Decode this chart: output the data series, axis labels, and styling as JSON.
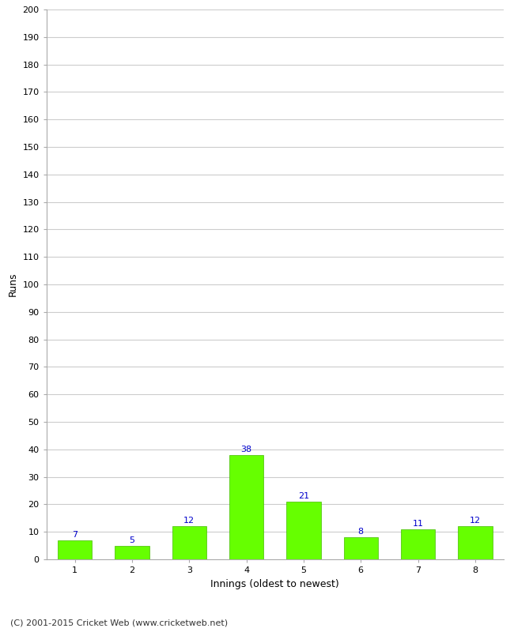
{
  "xlabel": "Innings (oldest to newest)",
  "ylabel": "Runs",
  "categories": [
    "1",
    "2",
    "3",
    "4",
    "5",
    "6",
    "7",
    "8"
  ],
  "values": [
    7,
    5,
    12,
    38,
    21,
    8,
    11,
    12
  ],
  "bar_color": "#66ff00",
  "bar_edge_color": "#44bb00",
  "label_color": "#0000cc",
  "ylim": [
    0,
    200
  ],
  "yticks": [
    0,
    10,
    20,
    30,
    40,
    50,
    60,
    70,
    80,
    90,
    100,
    110,
    120,
    130,
    140,
    150,
    160,
    170,
    180,
    190,
    200
  ],
  "background_color": "#ffffff",
  "grid_color": "#cccccc",
  "footer_text": "(C) 2001-2015 Cricket Web (www.cricketweb.net)",
  "label_fontsize": 8,
  "axis_tick_fontsize": 8,
  "axis_label_fontsize": 9,
  "footer_fontsize": 8
}
